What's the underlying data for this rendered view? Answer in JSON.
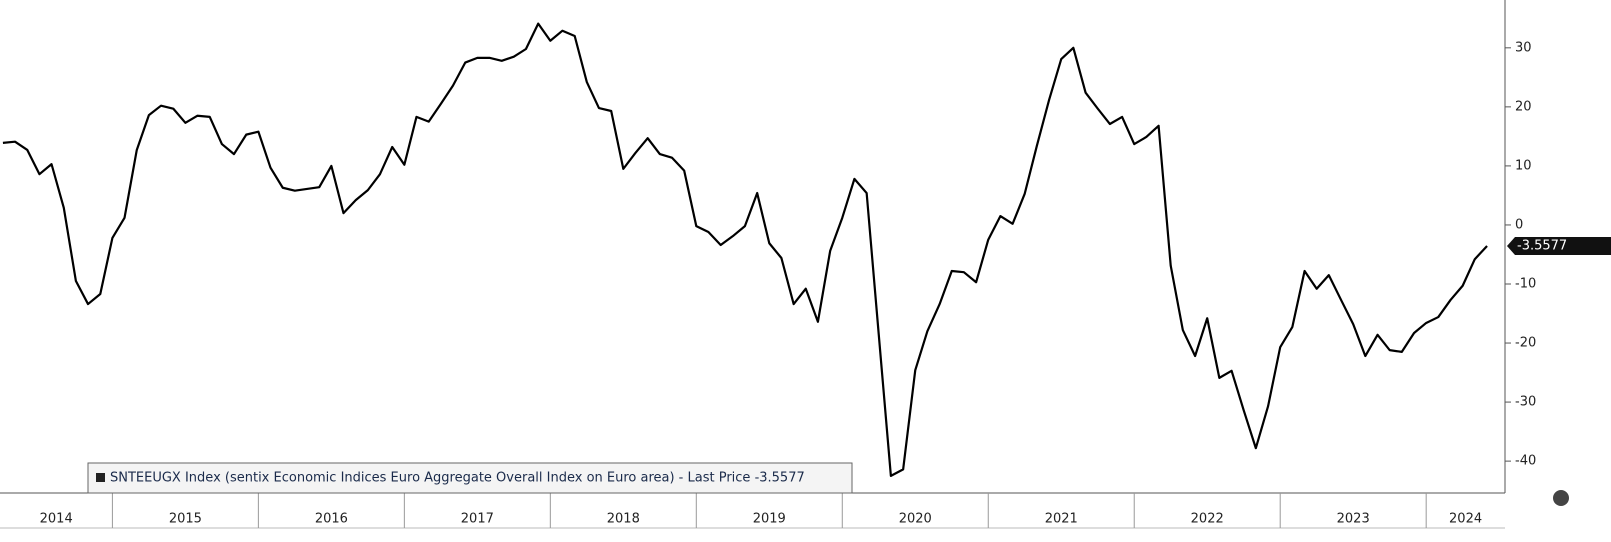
{
  "chart_data": {
    "type": "line",
    "series": [
      {
        "name": "SNTEEUGX Index (sentix Economic Indices Euro Aggregate  Overall Index on Euro area) - Last Price -3.5577",
        "color": "#000000",
        "x": [
          2014.25,
          2014.333,
          2014.417,
          2014.5,
          2014.583,
          2014.667,
          2014.75,
          2014.833,
          2014.917,
          2015,
          2015.083,
          2015.167,
          2015.25,
          2015.333,
          2015.417,
          2015.5,
          2015.583,
          2015.667,
          2015.75,
          2015.833,
          2015.917,
          2016,
          2016.083,
          2016.167,
          2016.25,
          2016.333,
          2016.417,
          2016.5,
          2016.583,
          2016.667,
          2016.75,
          2016.833,
          2016.917,
          2017,
          2017.083,
          2017.167,
          2017.25,
          2017.333,
          2017.417,
          2017.5,
          2017.583,
          2017.667,
          2017.75,
          2017.833,
          2017.917,
          2018,
          2018.083,
          2018.167,
          2018.25,
          2018.333,
          2018.417,
          2018.5,
          2018.583,
          2018.667,
          2018.75,
          2018.833,
          2018.917,
          2019,
          2019.083,
          2019.167,
          2019.25,
          2019.333,
          2019.417,
          2019.5,
          2019.583,
          2019.667,
          2019.75,
          2019.833,
          2019.917,
          2020,
          2020.083,
          2020.167,
          2020.25,
          2020.333,
          2020.417,
          2020.5,
          2020.583,
          2020.667,
          2020.75,
          2020.833,
          2020.917,
          2021,
          2021.083,
          2021.167,
          2021.25,
          2021.333,
          2021.417,
          2021.5,
          2021.583,
          2021.667,
          2021.75,
          2021.833,
          2021.917,
          2022,
          2022.083,
          2022.167,
          2022.25,
          2022.333,
          2022.417,
          2022.5,
          2022.583,
          2022.667,
          2022.75,
          2022.833,
          2022.917,
          2023,
          2023.083,
          2023.167,
          2023.25,
          2023.333,
          2023.417,
          2023.5,
          2023.583,
          2023.667,
          2023.75,
          2023.833,
          2023.917,
          2024,
          2024.083,
          2024.167,
          2024.25,
          2024.333,
          2024.417
        ],
        "values": [
          13.9,
          14.1,
          12.7,
          8.6,
          10.3,
          2.9,
          -9.5,
          -13.4,
          -11.7,
          -2.2,
          1.2,
          12.7,
          18.6,
          20.2,
          19.7,
          17.3,
          18.5,
          18.3,
          13.7,
          12,
          15.3,
          15.8,
          9.7,
          6.3,
          5.8,
          6.1,
          6.4,
          10,
          2,
          4.2,
          5.9,
          8.6,
          13.2,
          10.2,
          18.3,
          17.5,
          20.5,
          23.6,
          27.5,
          28.3,
          28.3,
          27.8,
          28.5,
          29.8,
          34.1,
          31.2,
          32.9,
          32,
          24.2,
          19.8,
          19.3,
          9.5,
          12.2,
          14.7,
          12,
          11.4,
          9.2,
          -0.2,
          -1.2,
          -3.4,
          -1.9,
          -0.2,
          5.4,
          -3.1,
          -5.6,
          -13.4,
          -10.8,
          -16.4,
          -4.4,
          1.2,
          7.8,
          5.4,
          -18.6,
          -42.5,
          -41.4,
          -24.6,
          -18,
          -13.4,
          -7.8,
          -8,
          -9.7,
          -2.5,
          1.5,
          0.2,
          5.3,
          13.4,
          21.2,
          28.1,
          30,
          22.4,
          19.7,
          17.1,
          18.3,
          13.7,
          14.9,
          16.8,
          -6.9,
          -17.8,
          -22.2,
          -15.8,
          -25.9,
          -24.7,
          -31.4,
          -37.8,
          -30.7,
          -20.7,
          -17.3,
          -7.8,
          -10.8,
          -8.5,
          -12.7,
          -16.8,
          -22.2,
          -18.6,
          -21.2,
          -21.5,
          -18.3,
          -16.6,
          -15.6,
          -12.7,
          -10.3,
          -5.8,
          -3.5577
        ]
      }
    ],
    "xlim": [
      2014.23,
      2024.54
    ],
    "xticks": [
      2014,
      2015,
      2016,
      2017,
      2018,
      2019,
      2020,
      2021,
      2022,
      2023,
      2024
    ],
    "ylim": [
      -45.4,
      38.1
    ],
    "yticks": [
      -40,
      -30,
      -20,
      -10,
      0,
      10,
      20,
      30
    ],
    "legend": "bottom-left"
  }
}
